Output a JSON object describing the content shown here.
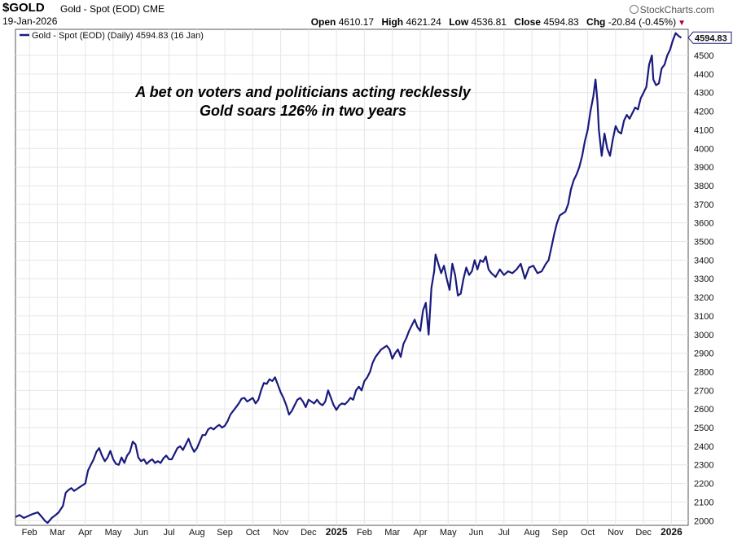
{
  "header": {
    "symbol": "$GOLD",
    "description": "Gold - Spot (EOD)",
    "exchange": "CME",
    "date": "19-Jan-2026",
    "open_label": "Open",
    "open": "4610.17",
    "high_label": "High",
    "high": "4621.24",
    "low_label": "Low",
    "low": "4536.81",
    "close_label": "Close",
    "close": "4594.83",
    "chg_label": "Chg",
    "chg": "-20.84 (-0.45%)",
    "brand": "StockCharts.com"
  },
  "colors": {
    "line": "#1a1a7e",
    "grid": "#e6e6e6",
    "down": "#b1002b"
  },
  "chart_data": {
    "type": "line",
    "title": "Gold - Spot (EOD) (Daily) 4594.83 (16 Jan)",
    "legend": "Gold - Spot (EOD) (Daily) 4594.83 (16 Jan)",
    "last_value_label": "4594.83",
    "annotations": [
      "A bet on voters and politicians acting recklessly",
      "Gold soars 126% in two years"
    ],
    "ylim": [
      1975,
      4640
    ],
    "y_ticks": [
      2000,
      2100,
      2200,
      2300,
      2400,
      2500,
      2600,
      2700,
      2800,
      2900,
      3000,
      3100,
      3200,
      3300,
      3400,
      3500,
      3600,
      3700,
      3800,
      3900,
      4000,
      4100,
      4200,
      4300,
      4400,
      4500
    ],
    "x_ticks": [
      {
        "label": "Feb",
        "t": 0.5
      },
      {
        "label": "Mar",
        "t": 1.5
      },
      {
        "label": "Apr",
        "t": 2.5
      },
      {
        "label": "May",
        "t": 3.5
      },
      {
        "label": "Jun",
        "t": 4.5
      },
      {
        "label": "Jul",
        "t": 5.5
      },
      {
        "label": "Aug",
        "t": 6.5
      },
      {
        "label": "Sep",
        "t": 7.5
      },
      {
        "label": "Oct",
        "t": 8.5
      },
      {
        "label": "Nov",
        "t": 9.5
      },
      {
        "label": "Dec",
        "t": 10.5
      },
      {
        "label": "2025",
        "t": 11.5,
        "bold": true
      },
      {
        "label": "Feb",
        "t": 12.5
      },
      {
        "label": "Mar",
        "t": 13.5
      },
      {
        "label": "Apr",
        "t": 14.5
      },
      {
        "label": "May",
        "t": 15.5
      },
      {
        "label": "Jun",
        "t": 16.5
      },
      {
        "label": "Jul",
        "t": 17.5
      },
      {
        "label": "Aug",
        "t": 18.5
      },
      {
        "label": "Sep",
        "t": 19.5
      },
      {
        "label": "Oct",
        "t": 20.5
      },
      {
        "label": "Nov",
        "t": 21.5
      },
      {
        "label": "Dec",
        "t": 22.5
      },
      {
        "label": "2026",
        "t": 23.5,
        "bold": true
      }
    ],
    "x_range": [
      0,
      24.1
    ],
    "series": [
      {
        "name": "Gold - Spot (EOD)",
        "points": [
          [
            0,
            2020
          ],
          [
            0.15,
            2030
          ],
          [
            0.3,
            2015
          ],
          [
            0.45,
            2025
          ],
          [
            0.6,
            2035
          ],
          [
            0.8,
            2045
          ],
          [
            0.9,
            2028
          ],
          [
            1.0,
            2010
          ],
          [
            1.05,
            2000
          ],
          [
            1.15,
            1988
          ],
          [
            1.3,
            2015
          ],
          [
            1.45,
            2032
          ],
          [
            1.55,
            2045
          ],
          [
            1.7,
            2080
          ],
          [
            1.8,
            2150
          ],
          [
            1.9,
            2165
          ],
          [
            2.0,
            2175
          ],
          [
            2.1,
            2160
          ],
          [
            2.2,
            2170
          ],
          [
            2.35,
            2185
          ],
          [
            2.5,
            2200
          ],
          [
            2.6,
            2270
          ],
          [
            2.7,
            2300
          ],
          [
            2.8,
            2330
          ],
          [
            2.9,
            2370
          ],
          [
            3.0,
            2390
          ],
          [
            3.1,
            2350
          ],
          [
            3.2,
            2320
          ],
          [
            3.3,
            2340
          ],
          [
            3.4,
            2375
          ],
          [
            3.5,
            2330
          ],
          [
            3.6,
            2305
          ],
          [
            3.7,
            2300
          ],
          [
            3.8,
            2340
          ],
          [
            3.9,
            2310
          ],
          [
            4.0,
            2350
          ],
          [
            4.1,
            2370
          ],
          [
            4.2,
            2425
          ],
          [
            4.3,
            2410
          ],
          [
            4.4,
            2340
          ],
          [
            4.5,
            2320
          ],
          [
            4.6,
            2330
          ],
          [
            4.7,
            2305
          ],
          [
            4.8,
            2320
          ],
          [
            4.9,
            2330
          ],
          [
            5.0,
            2310
          ],
          [
            5.1,
            2320
          ],
          [
            5.2,
            2310
          ],
          [
            5.3,
            2335
          ],
          [
            5.4,
            2350
          ],
          [
            5.5,
            2330
          ],
          [
            5.6,
            2330
          ],
          [
            5.7,
            2360
          ],
          [
            5.8,
            2390
          ],
          [
            5.9,
            2400
          ],
          [
            6.0,
            2380
          ],
          [
            6.1,
            2410
          ],
          [
            6.2,
            2440
          ],
          [
            6.3,
            2400
          ],
          [
            6.4,
            2370
          ],
          [
            6.5,
            2390
          ],
          [
            6.6,
            2425
          ],
          [
            6.7,
            2460
          ],
          [
            6.8,
            2460
          ],
          [
            6.9,
            2490
          ],
          [
            7.0,
            2500
          ],
          [
            7.1,
            2490
          ],
          [
            7.2,
            2505
          ],
          [
            7.3,
            2515
          ],
          [
            7.4,
            2500
          ],
          [
            7.5,
            2510
          ],
          [
            7.6,
            2535
          ],
          [
            7.7,
            2570
          ],
          [
            7.8,
            2590
          ],
          [
            7.9,
            2610
          ],
          [
            8.0,
            2630
          ],
          [
            8.1,
            2655
          ],
          [
            8.2,
            2660
          ],
          [
            8.3,
            2640
          ],
          [
            8.4,
            2650
          ],
          [
            8.5,
            2660
          ],
          [
            8.6,
            2630
          ],
          [
            8.7,
            2650
          ],
          [
            8.8,
            2700
          ],
          [
            8.9,
            2740
          ],
          [
            9.0,
            2735
          ],
          [
            9.1,
            2760
          ],
          [
            9.2,
            2750
          ],
          [
            9.3,
            2770
          ],
          [
            9.4,
            2730
          ],
          [
            9.5,
            2690
          ],
          [
            9.6,
            2660
          ],
          [
            9.7,
            2620
          ],
          [
            9.8,
            2570
          ],
          [
            9.9,
            2590
          ],
          [
            10.0,
            2620
          ],
          [
            10.1,
            2650
          ],
          [
            10.2,
            2660
          ],
          [
            10.3,
            2640
          ],
          [
            10.4,
            2610
          ],
          [
            10.5,
            2650
          ],
          [
            10.6,
            2640
          ],
          [
            10.7,
            2630
          ],
          [
            10.8,
            2650
          ],
          [
            10.9,
            2630
          ],
          [
            11.0,
            2620
          ],
          [
            11.1,
            2640
          ],
          [
            11.2,
            2700
          ],
          [
            11.3,
            2660
          ],
          [
            11.4,
            2620
          ],
          [
            11.5,
            2595
          ],
          [
            11.6,
            2620
          ],
          [
            11.7,
            2630
          ],
          [
            11.8,
            2625
          ],
          [
            11.9,
            2640
          ],
          [
            12.0,
            2660
          ],
          [
            12.1,
            2650
          ],
          [
            12.2,
            2700
          ],
          [
            12.3,
            2720
          ],
          [
            12.4,
            2700
          ],
          [
            12.5,
            2750
          ],
          [
            12.6,
            2770
          ],
          [
            12.7,
            2800
          ],
          [
            12.8,
            2850
          ],
          [
            12.9,
            2880
          ],
          [
            13.0,
            2900
          ],
          [
            13.1,
            2920
          ],
          [
            13.2,
            2930
          ],
          [
            13.3,
            2940
          ],
          [
            13.4,
            2920
          ],
          [
            13.5,
            2870
          ],
          [
            13.6,
            2900
          ],
          [
            13.7,
            2920
          ],
          [
            13.8,
            2880
          ],
          [
            13.9,
            2950
          ],
          [
            14.0,
            2980
          ],
          [
            14.1,
            3020
          ],
          [
            14.2,
            3050
          ],
          [
            14.3,
            3080
          ],
          [
            14.4,
            3040
          ],
          [
            14.5,
            3020
          ],
          [
            14.6,
            3130
          ],
          [
            14.7,
            3170
          ],
          [
            14.8,
            3000
          ],
          [
            14.9,
            3250
          ],
          [
            15.0,
            3340
          ],
          [
            15.05,
            3430
          ],
          [
            15.15,
            3380
          ],
          [
            15.25,
            3330
          ],
          [
            15.35,
            3370
          ],
          [
            15.45,
            3300
          ],
          [
            15.55,
            3240
          ],
          [
            15.65,
            3380
          ],
          [
            15.75,
            3320
          ],
          [
            15.85,
            3210
          ],
          [
            15.95,
            3220
          ],
          [
            16.05,
            3300
          ],
          [
            16.15,
            3360
          ],
          [
            16.25,
            3320
          ],
          [
            16.35,
            3340
          ],
          [
            16.45,
            3400
          ],
          [
            16.55,
            3350
          ],
          [
            16.65,
            3400
          ],
          [
            16.75,
            3390
          ],
          [
            16.85,
            3420
          ],
          [
            16.95,
            3350
          ],
          [
            17.05,
            3330
          ],
          [
            17.2,
            3310
          ],
          [
            17.35,
            3350
          ],
          [
            17.5,
            3320
          ],
          [
            17.65,
            3340
          ],
          [
            17.8,
            3330
          ],
          [
            17.95,
            3350
          ],
          [
            18.1,
            3380
          ],
          [
            18.25,
            3300
          ],
          [
            18.4,
            3360
          ],
          [
            18.55,
            3370
          ],
          [
            18.7,
            3330
          ],
          [
            18.85,
            3340
          ],
          [
            19.0,
            3380
          ],
          [
            19.1,
            3400
          ],
          [
            19.2,
            3470
          ],
          [
            19.3,
            3540
          ],
          [
            19.4,
            3600
          ],
          [
            19.5,
            3640
          ],
          [
            19.6,
            3650
          ],
          [
            19.7,
            3660
          ],
          [
            19.8,
            3700
          ],
          [
            19.9,
            3780
          ],
          [
            20.0,
            3830
          ],
          [
            20.1,
            3860
          ],
          [
            20.2,
            3900
          ],
          [
            20.3,
            3960
          ],
          [
            20.4,
            4040
          ],
          [
            20.5,
            4100
          ],
          [
            20.6,
            4200
          ],
          [
            20.7,
            4280
          ],
          [
            20.78,
            4370
          ],
          [
            20.85,
            4250
          ],
          [
            20.9,
            4100
          ],
          [
            21.0,
            3960
          ],
          [
            21.1,
            4080
          ],
          [
            21.2,
            4000
          ],
          [
            21.3,
            3960
          ],
          [
            21.4,
            4050
          ],
          [
            21.5,
            4120
          ],
          [
            21.6,
            4090
          ],
          [
            21.7,
            4080
          ],
          [
            21.8,
            4150
          ],
          [
            21.9,
            4180
          ],
          [
            22.0,
            4160
          ],
          [
            22.1,
            4190
          ],
          [
            22.2,
            4220
          ],
          [
            22.3,
            4210
          ],
          [
            22.4,
            4270
          ],
          [
            22.5,
            4300
          ],
          [
            22.6,
            4330
          ],
          [
            22.7,
            4450
          ],
          [
            22.8,
            4500
          ],
          [
            22.85,
            4370
          ],
          [
            22.95,
            4340
          ],
          [
            23.05,
            4350
          ],
          [
            23.15,
            4430
          ],
          [
            23.25,
            4450
          ],
          [
            23.35,
            4500
          ],
          [
            23.45,
            4530
          ],
          [
            23.55,
            4580
          ],
          [
            23.65,
            4620
          ],
          [
            23.75,
            4605
          ],
          [
            23.85,
            4595
          ]
        ]
      }
    ]
  }
}
